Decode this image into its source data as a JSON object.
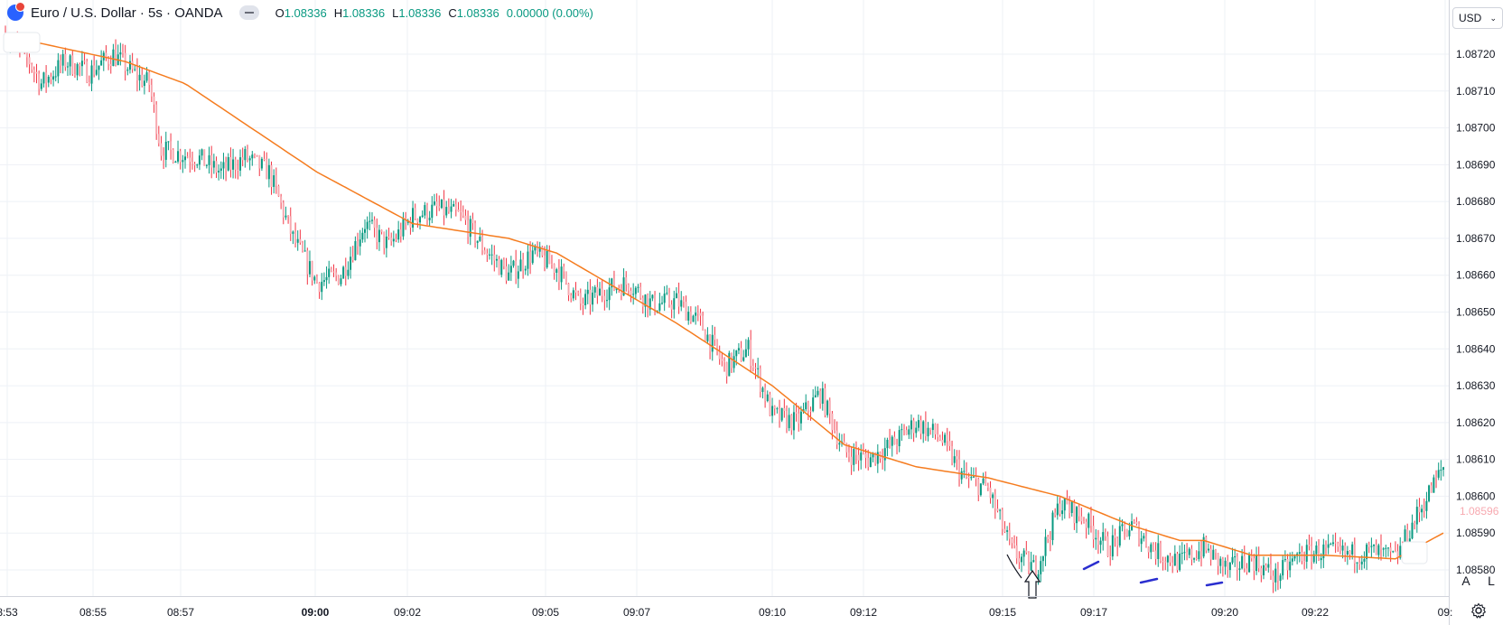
{
  "header": {
    "symbol_title": "Euro / U.S. Dollar · 5s · OANDA",
    "ohlc": {
      "o_label": "O",
      "o_value": "1.08336",
      "h_label": "H",
      "h_value": "1.08336",
      "l_label": "L",
      "l_value": "1.08336",
      "c_label": "C",
      "c_value": "1.08336",
      "change": "0.00000 (0.00%)"
    },
    "icons": {
      "logo": "euro-dollar-flag-icon",
      "collapse": "collapse-legend-icon"
    }
  },
  "price_scale": {
    "currency": "USD",
    "current_price_label": "1.08596"
  },
  "buttons": {
    "auto_scale": "A",
    "log_scale": "L",
    "settings_icon": "gear-icon"
  },
  "colors": {
    "up": "#089981",
    "down": "#f23645",
    "ma": "#f57c1f",
    "grid": "#eef1f6",
    "axis_text": "#131722",
    "drawing": "#2a2ecf"
  },
  "chart_data": {
    "type": "candlestick",
    "timeframe": "5s",
    "y_ticks": [
      1.0858,
      1.0859,
      1.086,
      1.0861,
      1.0862,
      1.0863,
      1.0864,
      1.0865,
      1.0866,
      1.0867,
      1.0868,
      1.0869,
      1.087,
      1.0871,
      1.0872
    ],
    "y_tick_labels": [
      "1.08580",
      "1.08590",
      "1.08600",
      "1.08610",
      "1.08620",
      "1.08630",
      "1.08640",
      "1.08650",
      "1.08660",
      "1.08670",
      "1.08680",
      "1.08690",
      "1.08700",
      "1.08710",
      "1.08720"
    ],
    "x_tick_labels": [
      "8:53",
      "08:55",
      "08:57",
      "09:00",
      "09:02",
      "09:05",
      "09:07",
      "09:10",
      "09:12",
      "09:15",
      "09:17",
      "09:20",
      "09:22",
      "09:"
    ],
    "x_tick_bold": [
      "09:00"
    ],
    "price_path": [
      [
        0,
        1.08725
      ],
      [
        20,
        1.08718
      ],
      [
        30,
        1.08712
      ],
      [
        50,
        1.08718
      ],
      [
        70,
        1.08715
      ],
      [
        90,
        1.0872
      ],
      [
        110,
        1.08714
      ],
      [
        120,
        1.08712
      ],
      [
        130,
        1.08694
      ],
      [
        160,
        1.08692
      ],
      [
        180,
        1.08688
      ],
      [
        200,
        1.08692
      ],
      [
        220,
        1.08688
      ],
      [
        240,
        1.0867
      ],
      [
        260,
        1.08658
      ],
      [
        280,
        1.0866
      ],
      [
        300,
        1.08674
      ],
      [
        320,
        1.08668
      ],
      [
        340,
        1.08676
      ],
      [
        360,
        1.08678
      ],
      [
        380,
        1.08676
      ],
      [
        400,
        1.08667
      ],
      [
        420,
        1.0866
      ],
      [
        440,
        1.08666
      ],
      [
        460,
        1.08662
      ],
      [
        480,
        1.08652
      ],
      [
        500,
        1.08656
      ],
      [
        520,
        1.08658
      ],
      [
        540,
        1.08652
      ],
      [
        560,
        1.08653
      ],
      [
        580,
        1.08647
      ],
      [
        600,
        1.08635
      ],
      [
        620,
        1.0864
      ],
      [
        640,
        1.08622
      ],
      [
        660,
        1.0862
      ],
      [
        680,
        1.08628
      ],
      [
        700,
        1.08612
      ],
      [
        720,
        1.0861
      ],
      [
        740,
        1.08614
      ],
      [
        760,
        1.0862
      ],
      [
        780,
        1.08616
      ],
      [
        800,
        1.08605
      ],
      [
        820,
        1.08602
      ],
      [
        840,
        1.08585
      ],
      [
        860,
        1.0858
      ],
      [
        880,
        1.08598
      ],
      [
        900,
        1.08594
      ],
      [
        920,
        1.08586
      ],
      [
        940,
        1.08592
      ],
      [
        960,
        1.08585
      ],
      [
        980,
        1.08582
      ],
      [
        1000,
        1.08586
      ],
      [
        1020,
        1.0858
      ],
      [
        1040,
        1.08583
      ],
      [
        1060,
        1.08578
      ],
      [
        1080,
        1.08584
      ],
      [
        1100,
        1.08585
      ],
      [
        1120,
        1.08584
      ],
      [
        1140,
        1.08585
      ],
      [
        1160,
        1.08583
      ],
      [
        1180,
        1.08596
      ],
      [
        1200,
        1.08608
      ]
    ],
    "moving_average": [
      [
        0,
        1.08725
      ],
      [
        100,
        1.08718
      ],
      [
        150,
        1.08712
      ],
      [
        260,
        1.08688
      ],
      [
        340,
        1.08674
      ],
      [
        420,
        1.0867
      ],
      [
        460,
        1.08666
      ],
      [
        560,
        1.08647
      ],
      [
        640,
        1.0863
      ],
      [
        700,
        1.08614
      ],
      [
        760,
        1.08608
      ],
      [
        820,
        1.08605
      ],
      [
        880,
        1.086
      ],
      [
        940,
        1.08592
      ],
      [
        980,
        1.08588
      ],
      [
        1000,
        1.08588
      ],
      [
        1040,
        1.08584
      ],
      [
        1100,
        1.08584
      ],
      [
        1160,
        1.08583
      ],
      [
        1200,
        1.0859
      ]
    ]
  }
}
